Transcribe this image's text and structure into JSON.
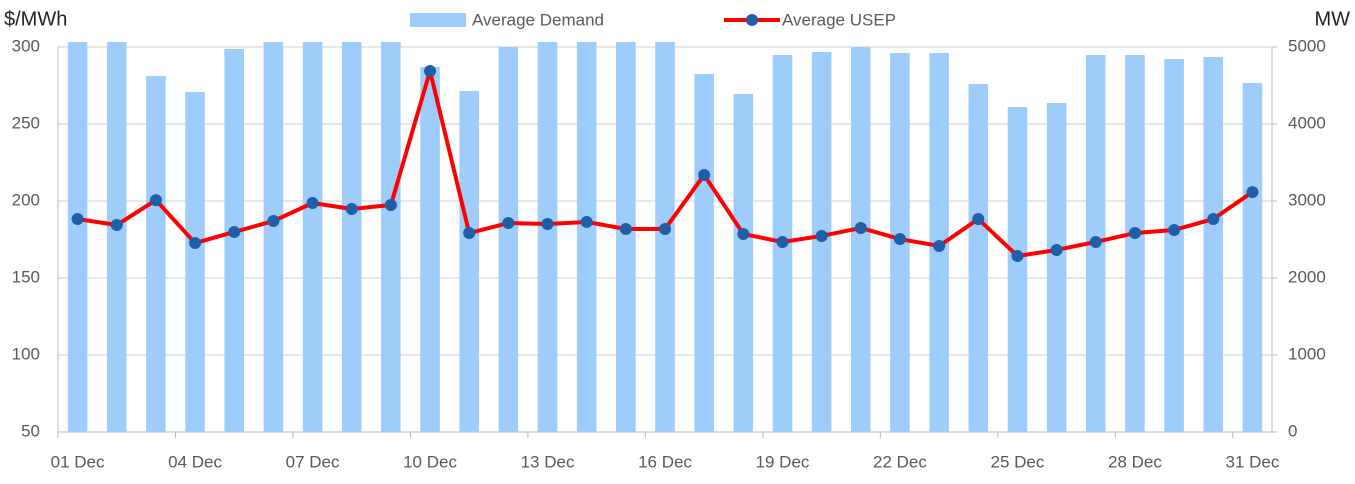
{
  "chart_data": {
    "type": "bar_line",
    "y_label": "$/MWh",
    "y2_label": "MW",
    "categories": [
      "01 Dec",
      null,
      null,
      "04 Dec",
      null,
      null,
      "07 Dec",
      null,
      null,
      "10 Dec",
      null,
      null,
      "13 Dec",
      null,
      null,
      "16 Dec",
      null,
      null,
      "19 Dec",
      null,
      null,
      "22 Dec",
      null,
      null,
      "25 Dec",
      null,
      null,
      "28 Dec",
      null,
      null,
      "31 Dec"
    ],
    "series": [
      {
        "name": "Average Demand",
        "type": "bar",
        "axis": "y2",
        "color": "#9fcdfb",
        "values": [
          5065,
          5065,
          4623,
          4416,
          4974,
          5065,
          5065,
          5065,
          5065,
          4740,
          4429,
          5000,
          5065,
          5065,
          5065,
          5065,
          4649,
          4390,
          4896,
          4935,
          5000,
          4922,
          4922,
          4519,
          4221,
          4273,
          4896,
          4896,
          4844,
          4870,
          4532
        ]
      },
      {
        "name": "Average USEP",
        "type": "line",
        "axis": "y",
        "color": "#ff0000",
        "marker_color": "#1f5fa8",
        "values": [
          188.3,
          184.4,
          200.6,
          172.7,
          179.9,
          187,
          198.7,
          194.8,
          197.4,
          284.4,
          179.2,
          185.7,
          185.1,
          186.4,
          181.8,
          181.8,
          216.9,
          178.6,
          173.4,
          177.3,
          182.5,
          175.3,
          170.8,
          188.3,
          164.3,
          168.2,
          173.4,
          179.2,
          181.2,
          188.3,
          205.8
        ]
      }
    ],
    "ylim": [
      50,
      300
    ],
    "yticks": [
      50,
      100,
      150,
      200,
      250,
      300
    ],
    "y2lim": [
      0,
      5000
    ],
    "y2ticks": [
      0,
      1000,
      2000,
      3000,
      4000,
      5000
    ],
    "grid": true,
    "legend": "top"
  }
}
